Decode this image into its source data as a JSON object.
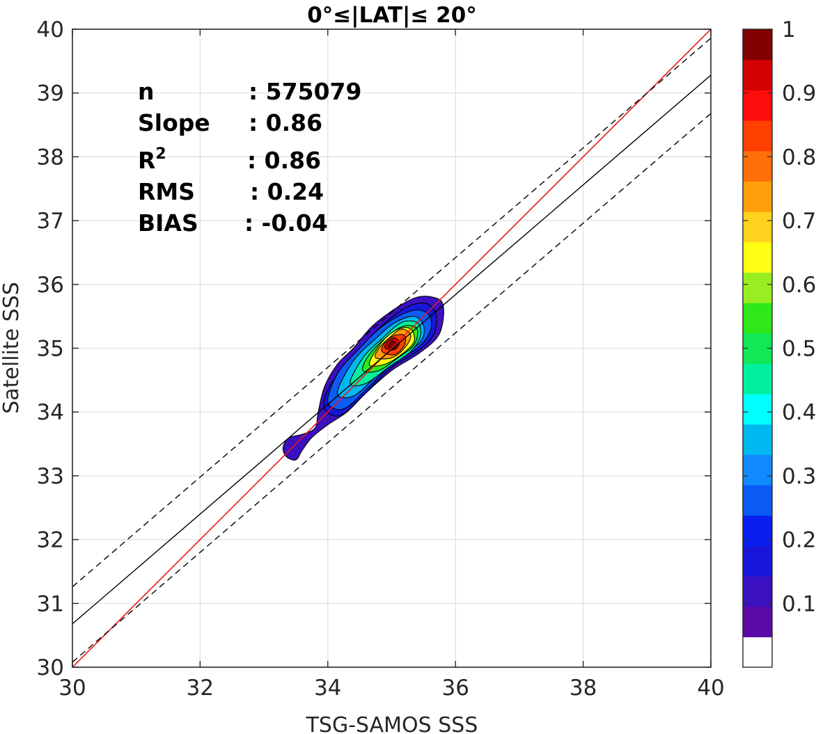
{
  "chart_data": {
    "type": "heatmap",
    "title": "0°≤|LAT|≤ 20°",
    "xlabel": "TSG-SAMOS SSS",
    "ylabel": "Satellite SSS",
    "xlim": [
      30,
      40
    ],
    "ylim": [
      30,
      40
    ],
    "xticks": [
      "30",
      "32",
      "34",
      "36",
      "38",
      "40"
    ],
    "yticks": [
      "30",
      "31",
      "32",
      "33",
      "34",
      "35",
      "36",
      "37",
      "38",
      "39",
      "40"
    ],
    "grid": true,
    "stats": [
      {
        "label": "n",
        "value": ": 575079"
      },
      {
        "label": "Slope",
        "value": ": 0.86"
      },
      {
        "label": "R",
        "sup": "2",
        "value": ": 0.86"
      },
      {
        "label": "RMS",
        "value": ": 0.24"
      },
      {
        "label": "BIAS",
        "value": ": -0.04"
      }
    ],
    "one_to_one_line": {
      "color": "#e8161d",
      "points": [
        [
          30,
          30
        ],
        [
          40,
          40
        ]
      ]
    },
    "fit_line": {
      "color": "#000000",
      "slope": 0.86,
      "intercept": 4.88
    },
    "fit_bounds": [
      {
        "color": "#000000",
        "style": "dashed",
        "intercept": 5.46
      },
      {
        "color": "#000000",
        "style": "dashed",
        "intercept": 4.28
      }
    ],
    "density_contours": [
      {
        "level": 0.05,
        "points": [
          [
            33.3,
            33.45
          ],
          [
            33.35,
            33.3
          ],
          [
            33.5,
            33.25
          ],
          [
            33.6,
            33.4
          ],
          [
            33.75,
            33.6
          ],
          [
            34.0,
            33.8
          ],
          [
            34.3,
            34.0
          ],
          [
            34.6,
            34.3
          ],
          [
            35.0,
            34.65
          ],
          [
            35.4,
            34.9
          ],
          [
            35.7,
            35.15
          ],
          [
            35.8,
            35.4
          ],
          [
            35.8,
            35.7
          ],
          [
            35.65,
            35.8
          ],
          [
            35.4,
            35.8
          ],
          [
            35.1,
            35.65
          ],
          [
            34.7,
            35.35
          ],
          [
            34.4,
            35.0
          ],
          [
            34.15,
            34.75
          ],
          [
            33.95,
            34.4
          ],
          [
            33.85,
            34.0
          ],
          [
            33.8,
            33.75
          ],
          [
            33.6,
            33.65
          ],
          [
            33.4,
            33.6
          ]
        ]
      },
      {
        "level": 0.1,
        "points": [
          [
            33.95,
            34.05
          ],
          [
            34.2,
            33.95
          ],
          [
            34.6,
            34.3
          ],
          [
            35.0,
            34.7
          ],
          [
            35.4,
            34.95
          ],
          [
            35.65,
            35.2
          ],
          [
            35.7,
            35.5
          ],
          [
            35.55,
            35.7
          ],
          [
            35.25,
            35.65
          ],
          [
            34.9,
            35.4
          ],
          [
            34.55,
            35.05
          ],
          [
            34.25,
            34.7
          ],
          [
            34.0,
            34.35
          ]
        ]
      },
      {
        "level": 0.2,
        "points": [
          [
            34.0,
            34.15
          ],
          [
            34.25,
            34.05
          ],
          [
            34.6,
            34.35
          ],
          [
            35.0,
            34.75
          ],
          [
            35.4,
            35.0
          ],
          [
            35.6,
            35.25
          ],
          [
            35.6,
            35.5
          ],
          [
            35.4,
            35.6
          ],
          [
            35.1,
            35.5
          ],
          [
            34.8,
            35.3
          ],
          [
            34.45,
            34.95
          ],
          [
            34.15,
            34.6
          ]
        ]
      },
      {
        "level": 0.3,
        "points": [
          [
            34.15,
            34.3
          ],
          [
            34.4,
            34.25
          ],
          [
            34.75,
            34.55
          ],
          [
            35.1,
            34.85
          ],
          [
            35.45,
            35.1
          ],
          [
            35.5,
            35.35
          ],
          [
            35.35,
            35.5
          ],
          [
            35.05,
            35.4
          ],
          [
            34.75,
            35.15
          ],
          [
            34.4,
            34.8
          ]
        ]
      },
      {
        "level": 0.4,
        "points": [
          [
            34.35,
            34.45
          ],
          [
            34.6,
            34.45
          ],
          [
            34.95,
            34.7
          ],
          [
            35.3,
            34.95
          ],
          [
            35.45,
            35.2
          ],
          [
            35.4,
            35.4
          ],
          [
            35.15,
            35.4
          ],
          [
            34.85,
            35.15
          ],
          [
            34.55,
            34.85
          ]
        ]
      },
      {
        "level": 0.5,
        "points": [
          [
            34.55,
            34.65
          ],
          [
            34.8,
            34.65
          ],
          [
            35.1,
            34.85
          ],
          [
            35.35,
            35.05
          ],
          [
            35.4,
            35.3
          ],
          [
            35.2,
            35.35
          ],
          [
            34.95,
            35.2
          ],
          [
            34.65,
            34.9
          ]
        ]
      },
      {
        "level": 0.6,
        "points": [
          [
            34.65,
            34.75
          ],
          [
            34.9,
            34.75
          ],
          [
            35.15,
            34.9
          ],
          [
            35.35,
            35.1
          ],
          [
            35.3,
            35.3
          ],
          [
            35.1,
            35.3
          ],
          [
            34.85,
            35.1
          ]
        ]
      },
      {
        "level": 0.7,
        "points": [
          [
            34.75,
            34.85
          ],
          [
            35.0,
            34.85
          ],
          [
            35.2,
            35.0
          ],
          [
            35.3,
            35.2
          ],
          [
            35.15,
            35.3
          ],
          [
            34.95,
            35.15
          ],
          [
            34.8,
            35.0
          ]
        ]
      },
      {
        "level": 0.8,
        "points": [
          [
            34.85,
            34.95
          ],
          [
            35.05,
            34.9
          ],
          [
            35.2,
            35.05
          ],
          [
            35.2,
            35.2
          ],
          [
            35.05,
            35.2
          ],
          [
            34.9,
            35.1
          ]
        ]
      },
      {
        "level": 0.9,
        "points": [
          [
            34.9,
            35.0
          ],
          [
            35.05,
            34.98
          ],
          [
            35.12,
            35.08
          ],
          [
            35.05,
            35.16
          ],
          [
            34.93,
            35.1
          ]
        ]
      },
      {
        "level": 0.95,
        "points": [
          [
            34.95,
            35.02
          ],
          [
            35.04,
            35.0
          ],
          [
            35.07,
            35.07
          ],
          [
            35.0,
            35.11
          ]
        ]
      }
    ],
    "colorbar": {
      "ticks": [
        "0.1",
        "0.2",
        "0.3",
        "0.4",
        "0.5",
        "0.6",
        "0.7",
        "0.8",
        "0.9",
        "1"
      ],
      "colors": [
        "#ffffff",
        "#5b0aa5",
        "#3b10c0",
        "#1816d8",
        "#0a1ef0",
        "#0a5cf5",
        "#1189ff",
        "#00b8f0",
        "#00ffff",
        "#00f0a0",
        "#12e855",
        "#2ee81a",
        "#99ee22",
        "#ffff14",
        "#ffd21d",
        "#ff9d0a",
        "#ff6f0a",
        "#ff4000",
        "#ff0d0d",
        "#d20202",
        "#820000"
      ]
    }
  }
}
